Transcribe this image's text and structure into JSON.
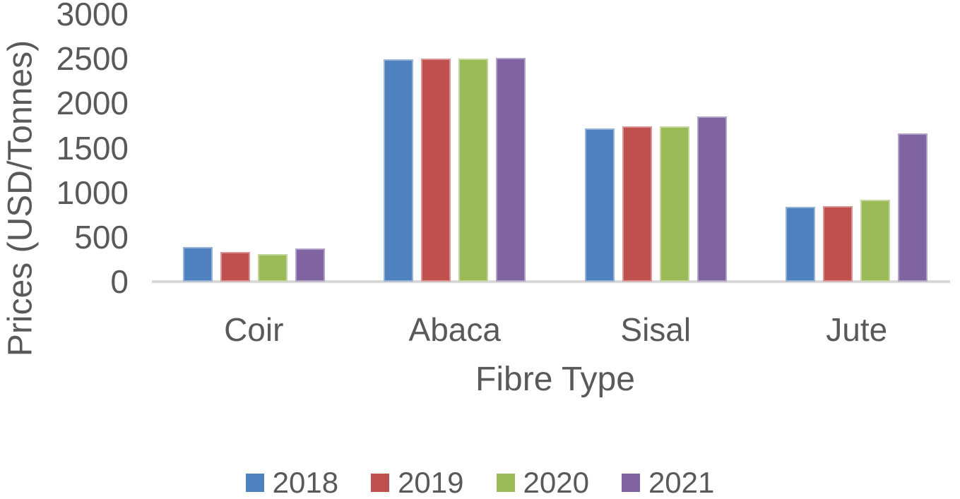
{
  "chart_data": {
    "type": "bar",
    "title": "",
    "xlabel": "Fibre Type",
    "ylabel": "Prices (USD/Tonnes)",
    "categories": [
      "Coir",
      "Abaca",
      "Sisal",
      "Jute"
    ],
    "series": [
      {
        "name": "2018",
        "color": "#4E81BD",
        "border_color": "#95B3D7",
        "values": [
          390,
          2490,
          1720,
          840
        ]
      },
      {
        "name": "2019",
        "color": "#C0504D",
        "border_color": "#D99694",
        "values": [
          330,
          2500,
          1745,
          850
        ]
      },
      {
        "name": "2020",
        "color": "#9BBB59",
        "border_color": "#C3D69B",
        "values": [
          305,
          2500,
          1740,
          915
        ]
      },
      {
        "name": "2021",
        "color": "#8064A2",
        "border_color": "#B3A2C7",
        "values": [
          370,
          2510,
          1855,
          1660
        ]
      }
    ],
    "y_ticks": [
      0,
      500,
      1000,
      1500,
      2000,
      2500,
      3000
    ],
    "ylim": [
      0,
      3000
    ],
    "grid": false,
    "legend_position": "bottom",
    "text_color": "#595959",
    "axis_line_color": "#D9D9D9"
  }
}
